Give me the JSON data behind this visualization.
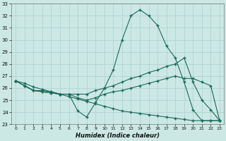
{
  "xlabel": "Humidex (Indice chaleur)",
  "xlim": [
    -0.5,
    23.5
  ],
  "ylim": [
    23,
    33
  ],
  "yticks": [
    23,
    24,
    25,
    26,
    27,
    28,
    29,
    30,
    31,
    32,
    33
  ],
  "xticks": [
    0,
    1,
    2,
    3,
    4,
    5,
    6,
    7,
    8,
    9,
    10,
    11,
    12,
    13,
    14,
    15,
    16,
    17,
    18,
    19,
    20,
    21,
    22,
    23
  ],
  "bg_color": "#cce8e4",
  "grid_color": "#aad0cc",
  "line_color": "#1a6b5a",
  "lines": [
    {
      "x": [
        0,
        1,
        2,
        3,
        4,
        5,
        6,
        7,
        8,
        9,
        10,
        11,
        12,
        13,
        14,
        15,
        16,
        17,
        18,
        19,
        20,
        21,
        22,
        23
      ],
      "y": [
        26.6,
        26.2,
        25.8,
        25.8,
        25.7,
        25.5,
        25.5,
        24.1,
        23.6,
        24.8,
        26.0,
        27.5,
        30.0,
        32.0,
        32.5,
        32.0,
        31.2,
        29.5,
        28.5,
        26.5,
        24.2,
        23.3,
        23.3,
        23.3
      ]
    },
    {
      "x": [
        0,
        1,
        2,
        3,
        4,
        5,
        6,
        7,
        8,
        9,
        10,
        11,
        12,
        13,
        14,
        15,
        16,
        17,
        18,
        19,
        20,
        21,
        22,
        23
      ],
      "y": [
        26.6,
        26.2,
        25.8,
        25.7,
        25.6,
        25.5,
        25.5,
        25.5,
        25.5,
        25.8,
        26.0,
        26.2,
        26.5,
        26.8,
        27.0,
        27.3,
        27.5,
        27.8,
        28.0,
        28.5,
        26.5,
        25.0,
        24.2,
        23.3
      ]
    },
    {
      "x": [
        0,
        1,
        2,
        3,
        4,
        5,
        6,
        7,
        8,
        9,
        10,
        11,
        12,
        13,
        14,
        15,
        16,
        17,
        18,
        19,
        20,
        21,
        22,
        23
      ],
      "y": [
        26.6,
        26.4,
        26.1,
        25.9,
        25.7,
        25.5,
        25.3,
        25.1,
        24.9,
        24.7,
        24.5,
        24.3,
        24.1,
        24.0,
        23.9,
        23.8,
        23.7,
        23.6,
        23.5,
        23.4,
        23.3,
        23.3,
        23.3,
        23.3
      ]
    },
    {
      "x": [
        0,
        1,
        2,
        3,
        4,
        5,
        6,
        7,
        8,
        9,
        10,
        11,
        12,
        13,
        14,
        15,
        16,
        17,
        18,
        19,
        20,
        21,
        22,
        23
      ],
      "y": [
        26.6,
        26.2,
        25.8,
        25.7,
        25.6,
        25.5,
        25.5,
        25.2,
        25.0,
        25.2,
        25.5,
        25.7,
        25.8,
        26.0,
        26.2,
        26.4,
        26.6,
        26.8,
        27.0,
        26.8,
        26.8,
        26.5,
        26.2,
        23.3
      ]
    }
  ]
}
